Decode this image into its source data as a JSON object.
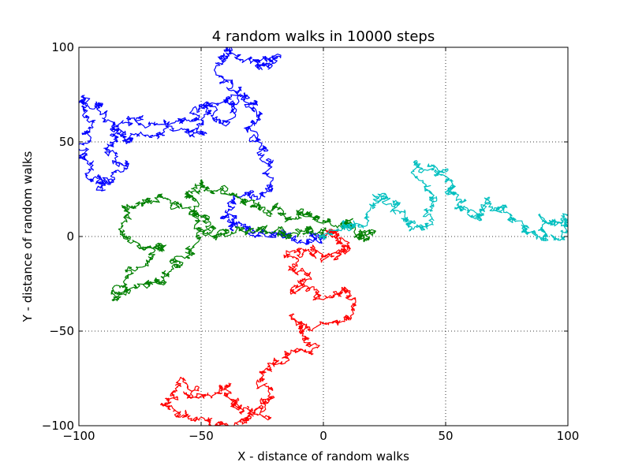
{
  "chart_data": {
    "type": "line",
    "title": "4 random walks in 10000 steps",
    "xlabel": "X - distance of random walks",
    "ylabel": "Y - distance of random walks",
    "xlim": [
      -100,
      100
    ],
    "ylim": [
      -100,
      100
    ],
    "xticks": [
      -100,
      -50,
      0,
      50,
      100
    ],
    "yticks": [
      -100,
      -50,
      0,
      50,
      100
    ],
    "xtick_labels": [
      "−100",
      "−50",
      "0",
      "50",
      "100"
    ],
    "ytick_labels": [
      "−100",
      "−50",
      "0",
      "50",
      "100"
    ],
    "grid": true,
    "steps": 10000,
    "series": [
      {
        "color": "#0000ff",
        "anchors": [
          [
            0,
            0
          ],
          [
            -5,
            -3
          ],
          [
            -15,
            0
          ],
          [
            -25,
            2
          ],
          [
            -35,
            5
          ],
          [
            -40,
            12
          ],
          [
            -33,
            22
          ],
          [
            -20,
            25
          ],
          [
            -25,
            42
          ],
          [
            -30,
            55
          ],
          [
            -25,
            68
          ],
          [
            -35,
            75
          ],
          [
            -50,
            68
          ],
          [
            -55,
            60
          ],
          [
            -75,
            60
          ],
          [
            -85,
            58
          ],
          [
            -88,
            45
          ],
          [
            -82,
            35
          ],
          [
            -90,
            25
          ],
          [
            -95,
            32
          ],
          [
            -100,
            45
          ],
          [
            -95,
            62
          ],
          [
            -100,
            72
          ],
          [
            -92,
            68
          ],
          [
            -82,
            55
          ],
          [
            -78,
            52
          ],
          [
            -62,
            55
          ],
          [
            -50,
            55
          ],
          [
            -48,
            68
          ],
          [
            -40,
            60
          ],
          [
            -35,
            75
          ],
          [
            -42,
            90
          ],
          [
            -38,
            100
          ],
          [
            -28,
            92
          ],
          [
            -20,
            95
          ],
          [
            -25,
            88
          ]
        ]
      },
      {
        "color": "#008000",
        "anchors": [
          [
            0,
            0
          ],
          [
            -8,
            3
          ],
          [
            -15,
            0
          ],
          [
            -25,
            5
          ],
          [
            -35,
            2
          ],
          [
            -45,
            0
          ],
          [
            -50,
            12
          ],
          [
            -60,
            18
          ],
          [
            -70,
            20
          ],
          [
            -80,
            15
          ],
          [
            -82,
            2
          ],
          [
            -70,
            -8
          ],
          [
            -65,
            -5
          ],
          [
            -78,
            -18
          ],
          [
            -85,
            -35
          ],
          [
            -78,
            -28
          ],
          [
            -70,
            -25
          ],
          [
            -62,
            -15
          ],
          [
            -55,
            -8
          ],
          [
            -50,
            5
          ],
          [
            -55,
            22
          ],
          [
            -48,
            28
          ],
          [
            -38,
            22
          ],
          [
            -30,
            18
          ],
          [
            -20,
            15
          ],
          [
            -12,
            10
          ],
          [
            -5,
            12
          ],
          [
            5,
            8
          ],
          [
            12,
            5
          ],
          [
            18,
            2
          ],
          [
            15,
            0
          ]
        ]
      },
      {
        "color": "#ff0000",
        "anchors": [
          [
            0,
            0
          ],
          [
            5,
            3
          ],
          [
            10,
            -5
          ],
          [
            5,
            -10
          ],
          [
            -5,
            -8
          ],
          [
            -15,
            -12
          ],
          [
            -8,
            -20
          ],
          [
            -15,
            -28
          ],
          [
            0,
            -32
          ],
          [
            10,
            -28
          ],
          [
            12,
            -40
          ],
          [
            -5,
            -48
          ],
          [
            -12,
            -45
          ],
          [
            -5,
            -58
          ],
          [
            -18,
            -65
          ],
          [
            -25,
            -72
          ],
          [
            -22,
            -85
          ],
          [
            -30,
            -92
          ],
          [
            -38,
            -88
          ],
          [
            -40,
            -80
          ],
          [
            -50,
            -85
          ],
          [
            -58,
            -78
          ],
          [
            -65,
            -88
          ],
          [
            -55,
            -95
          ],
          [
            -45,
            -100
          ],
          [
            -35,
            -98
          ],
          [
            -25,
            -95
          ]
        ]
      },
      {
        "color": "#00bfbf",
        "anchors": [
          [
            0,
            0
          ],
          [
            8,
            5
          ],
          [
            15,
            8
          ],
          [
            22,
            20
          ],
          [
            30,
            15
          ],
          [
            35,
            5
          ],
          [
            42,
            8
          ],
          [
            45,
            20
          ],
          [
            38,
            40
          ],
          [
            48,
            35
          ],
          [
            52,
            25
          ],
          [
            55,
            15
          ],
          [
            62,
            10
          ],
          [
            68,
            18
          ],
          [
            75,
            12
          ],
          [
            82,
            5
          ],
          [
            88,
            0
          ],
          [
            92,
            8
          ],
          [
            98,
            5
          ],
          [
            100,
            10
          ],
          [
            95,
            -2
          ]
        ]
      }
    ]
  }
}
